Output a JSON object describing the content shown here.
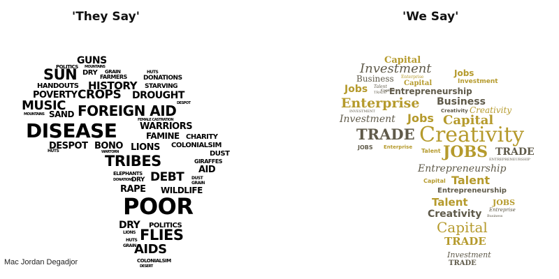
{
  "left": {
    "title": "'They Say'",
    "words": [
      "GUNS",
      "POLITICS",
      "MOUNTAINS",
      "SUN",
      "DRY",
      "GRAIN",
      "FARMERS",
      "HUTS",
      "DONATIONS",
      "HANDOUTS",
      "HISTORY",
      "STARVING",
      "POVERTY",
      "CROPS",
      "DROUGHT",
      "MUSIC",
      "DESPOT",
      "MOUNTAINS",
      "SAND",
      "FOREIGN AID",
      "FEMALE CASTRATION",
      "DISEASE",
      "WARRIORS",
      "FAMINE",
      "CHARITY",
      "DESPOT",
      "BONO",
      "LIONS",
      "COLONIALSIM",
      "HUTS",
      "WARTORN",
      "DUST",
      "TRIBES",
      "GIRAFFES",
      "AID",
      "ELEPHANTS",
      "DONATIONS",
      "DRY",
      "DEBT",
      "DUST",
      "GRAIN",
      "RAPE",
      "WILDLIFE",
      "POOR",
      "DRY",
      "POLITICS",
      "LIONS",
      "FLIES",
      "HUTS",
      "GRAIN",
      "AIDS",
      "COLONIALSIM",
      "DESERT"
    ]
  },
  "right": {
    "title": "'We Say'",
    "words": [
      "Capital",
      "Investment",
      "Jobs",
      "Business",
      "Enterprise",
      "Capital",
      "Investment",
      "Jobs",
      "Talent",
      "Capital",
      "TRADE",
      "Entrepreneurship",
      "Enterprise",
      "Business",
      "INVESTMENT",
      "Creativity",
      "Creativity",
      "Investment",
      "Jobs",
      "Capital",
      "TRADE",
      "Creativity",
      "JOBS",
      "Enterprise",
      "Talent",
      "JOBS",
      "TRADE",
      "ENTREPRENEURSHIP",
      "Entrepreneurship",
      "Capital",
      "Talent",
      "Entrepreneurship",
      "Talent",
      "JOBS",
      "Entreprise",
      "Creativity",
      "Business",
      "Capital",
      "TRADE",
      "Investment",
      "TRADE"
    ]
  },
  "credit": "Mac Jordan Degadjor",
  "colors": {
    "left_text": "#161616",
    "right_gold": "#b59a2c",
    "right_dark": "#5f5a4a"
  }
}
